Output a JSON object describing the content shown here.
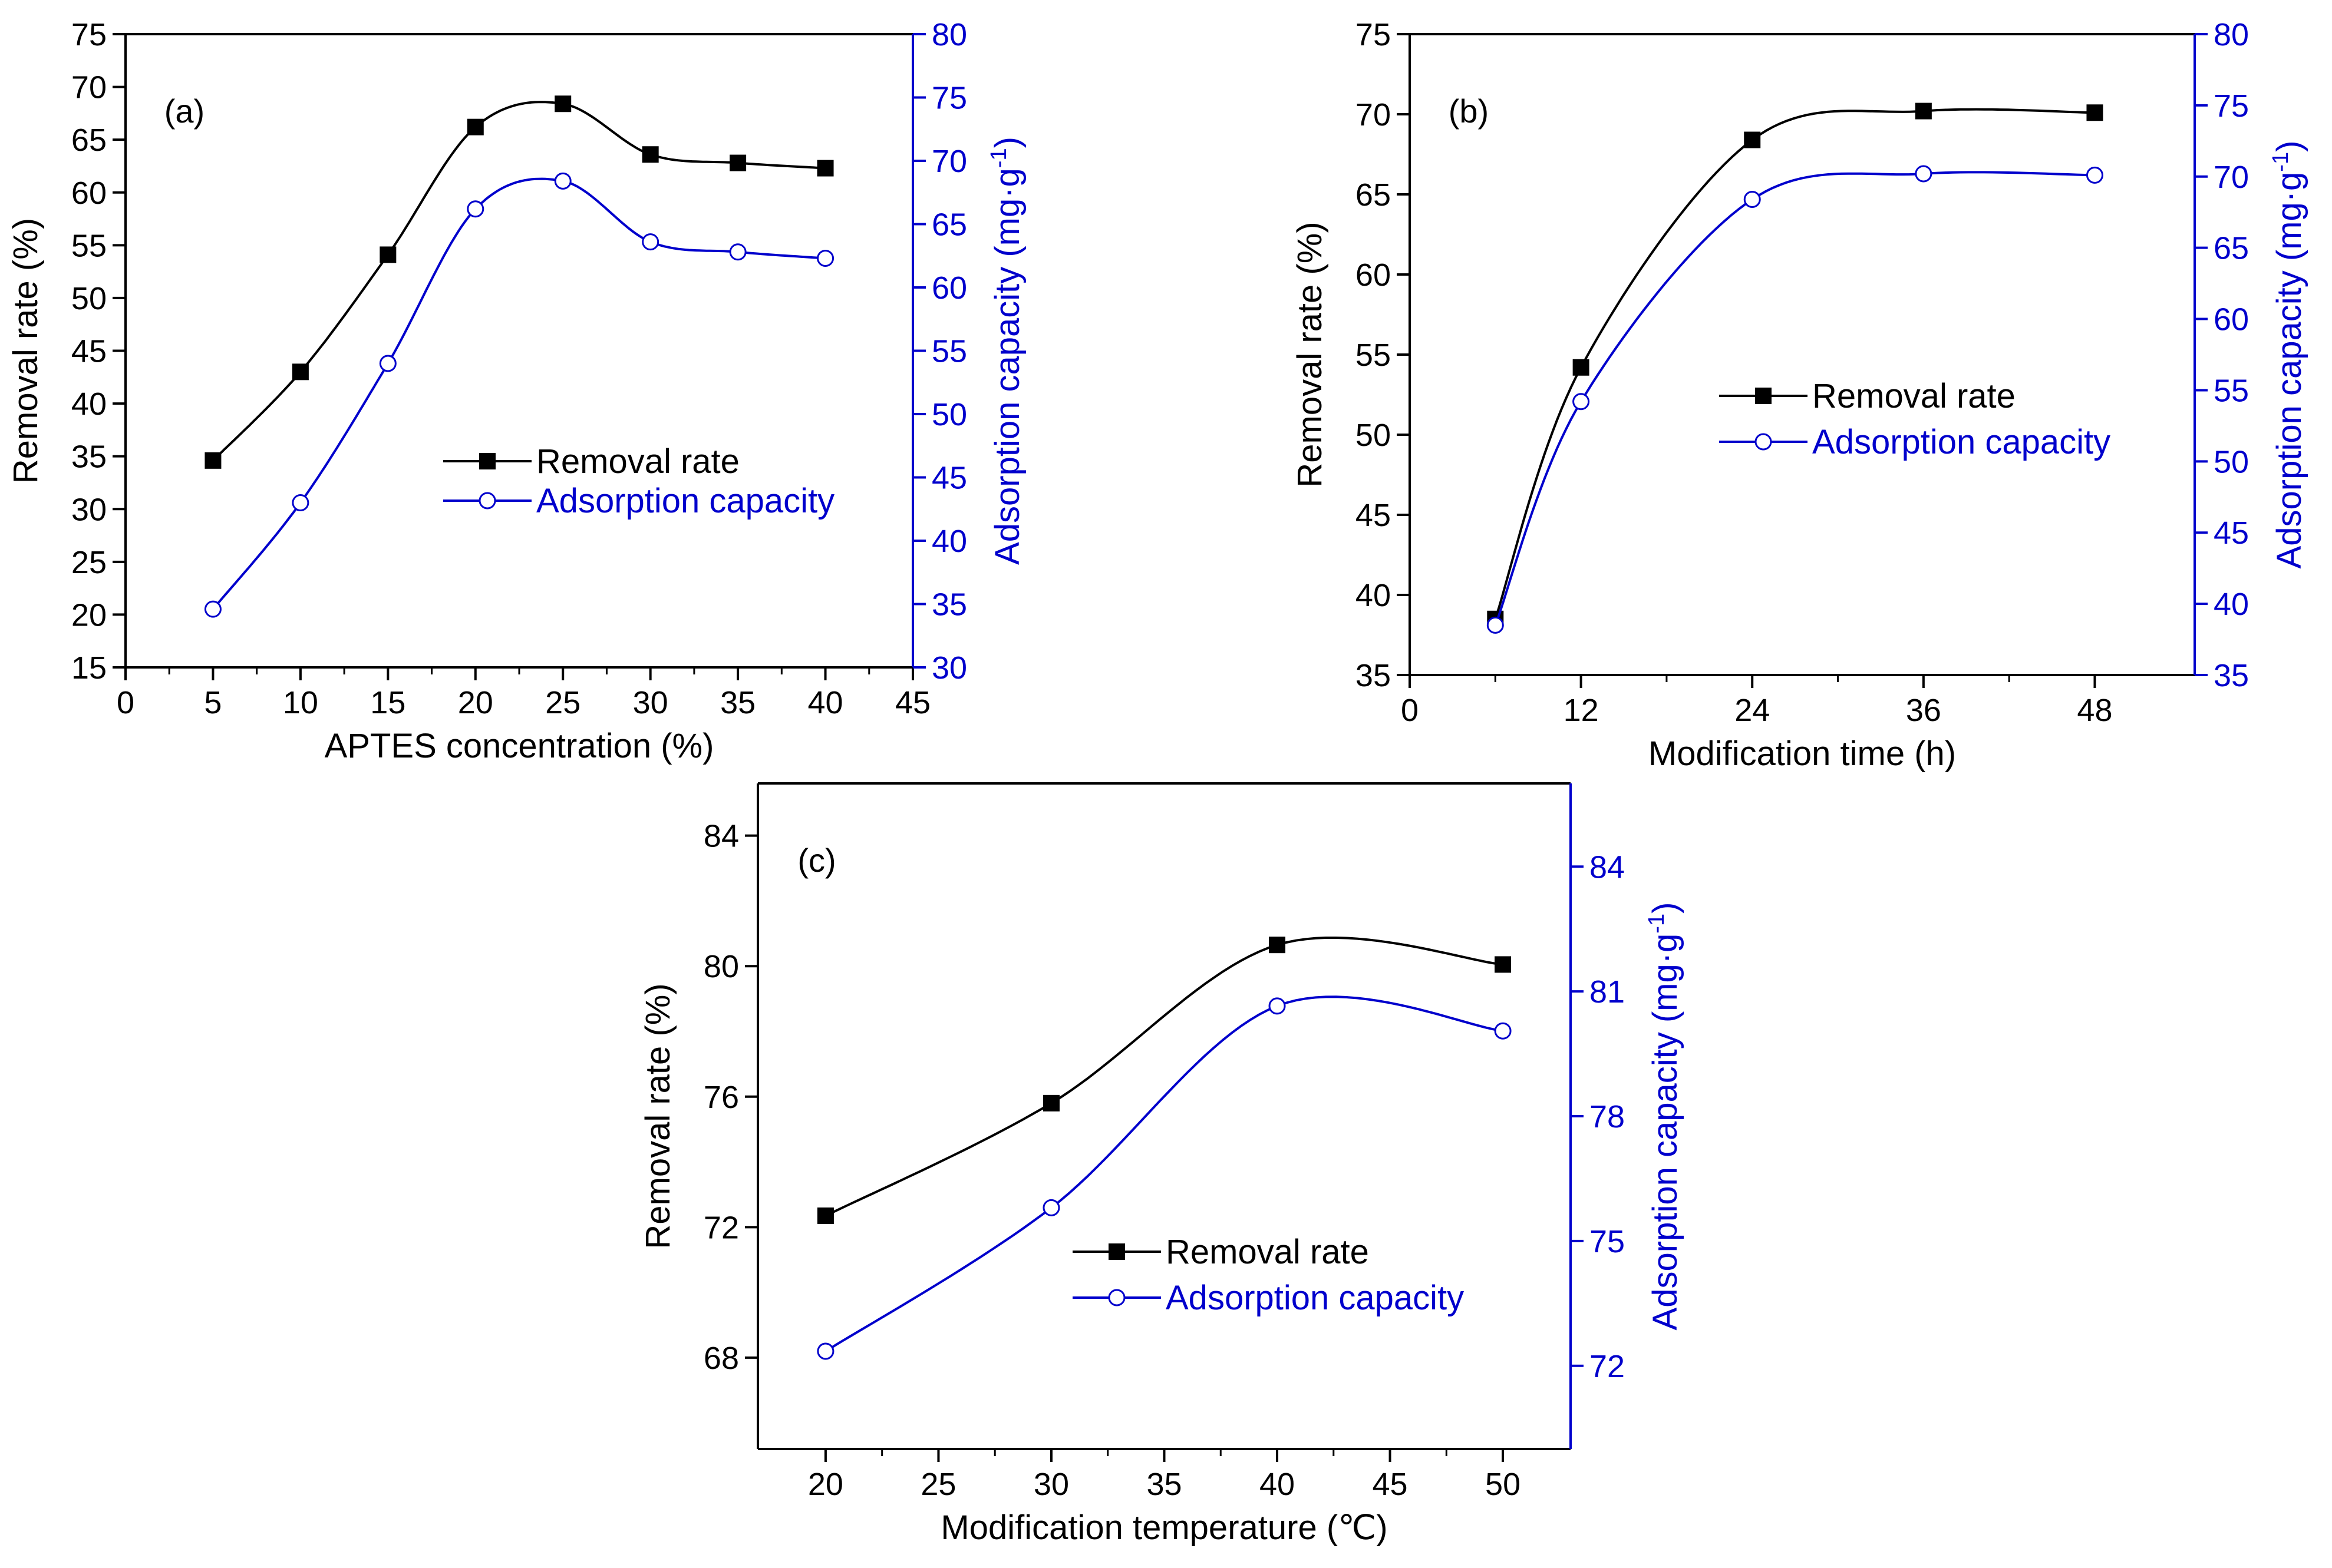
{
  "figure": {
    "title": ""
  },
  "colors": {
    "removal": "#000000",
    "adsorption": "#0000cc",
    "frame": "#000000"
  },
  "chart_data": [
    {
      "id": "a",
      "type": "line",
      "panel_label": "(a)",
      "xlabel": "APTES concentration (%)",
      "ylabel": "Removal rate (%)",
      "y2label_main": "Adsorption capacity (mg·g",
      "y2label_sup": "-1",
      "y2label_end": ")",
      "xlim": [
        0,
        45
      ],
      "ylim": [
        15,
        75
      ],
      "y2lim": [
        30,
        80
      ],
      "xticks": [
        "0",
        "5",
        "10",
        "15",
        "20",
        "25",
        "30",
        "35",
        "40",
        "45"
      ],
      "yticks": [
        "15",
        "20",
        "25",
        "30",
        "35",
        "40",
        "45",
        "50",
        "55",
        "60",
        "65",
        "70",
        "75"
      ],
      "y2ticks": [
        "30",
        "35",
        "40",
        "45",
        "50",
        "55",
        "60",
        "65",
        "70",
        "75",
        "80"
      ],
      "legend_position": "center-right",
      "series": [
        {
          "name": "Removal rate",
          "axis": "left",
          "marker": "square",
          "x": [
            5,
            10,
            15,
            20,
            25,
            30,
            35,
            40
          ],
          "y": [
            34.6,
            43.0,
            54.1,
            66.2,
            68.4,
            63.6,
            62.8,
            62.3
          ]
        },
        {
          "name": "Adsorption capacity",
          "axis": "right",
          "marker": "circle",
          "x": [
            5,
            10,
            15,
            20,
            25,
            30,
            35,
            40
          ],
          "y": [
            34.6,
            43.0,
            54.0,
            66.2,
            68.4,
            63.6,
            62.8,
            62.3
          ]
        }
      ]
    },
    {
      "id": "b",
      "type": "line",
      "panel_label": "(b)",
      "xlabel": "Modification time (h)",
      "ylabel": "Removal rate (%)",
      "y2label_main": "Adsorption capacity (mg·g",
      "y2label_sup": "-1",
      "y2label_end": ")",
      "xlim": [
        0,
        55
      ],
      "ylim": [
        35,
        75
      ],
      "y2lim": [
        35,
        80
      ],
      "xticks": [
        "0",
        "12",
        "24",
        "36",
        "48"
      ],
      "yticks": [
        "35",
        "40",
        "45",
        "50",
        "55",
        "60",
        "65",
        "70",
        "75"
      ],
      "y2ticks": [
        "35",
        "40",
        "45",
        "50",
        "55",
        "60",
        "65",
        "70",
        "75",
        "80"
      ],
      "legend_position": "center-right",
      "series": [
        {
          "name": "Removal rate",
          "axis": "left",
          "marker": "square",
          "x": [
            6,
            12,
            24,
            36,
            48
          ],
          "y": [
            38.5,
            54.2,
            68.4,
            70.2,
            70.1
          ]
        },
        {
          "name": "Adsorption capacity",
          "axis": "right",
          "marker": "circle",
          "x": [
            6,
            12,
            24,
            36,
            48
          ],
          "y": [
            38.5,
            54.2,
            68.4,
            70.2,
            70.1
          ]
        }
      ]
    },
    {
      "id": "c",
      "type": "line",
      "panel_label": "(c)",
      "xlabel": "Modification temperature (℃)",
      "ylabel": "Removal rate (%)",
      "y2label_main": "Adsorption capacity (mg·g",
      "y2label_sup": "-1",
      "y2label_end": ")",
      "xlim": [
        17,
        53
      ],
      "ylim": [
        65.2,
        85.6
      ],
      "y2lim": [
        70,
        86
      ],
      "xticks": [
        "20",
        "25",
        "30",
        "35",
        "40",
        "45",
        "50"
      ],
      "yticks": [
        "68",
        "72",
        "76",
        "80",
        "84"
      ],
      "y2ticks": [
        "72",
        "75",
        "78",
        "81",
        "84"
      ],
      "legend_position": "lower-right",
      "series": [
        {
          "name": "Removal rate",
          "axis": "left",
          "marker": "square",
          "x": [
            20,
            30,
            40,
            50
          ],
          "y": [
            72.35,
            75.8,
            80.65,
            80.05
          ]
        },
        {
          "name": "Adsorption capacity",
          "axis": "right",
          "marker": "circle",
          "x": [
            20,
            30,
            40,
            50
          ],
          "y": [
            72.35,
            75.8,
            80.65,
            80.05
          ]
        }
      ]
    }
  ]
}
